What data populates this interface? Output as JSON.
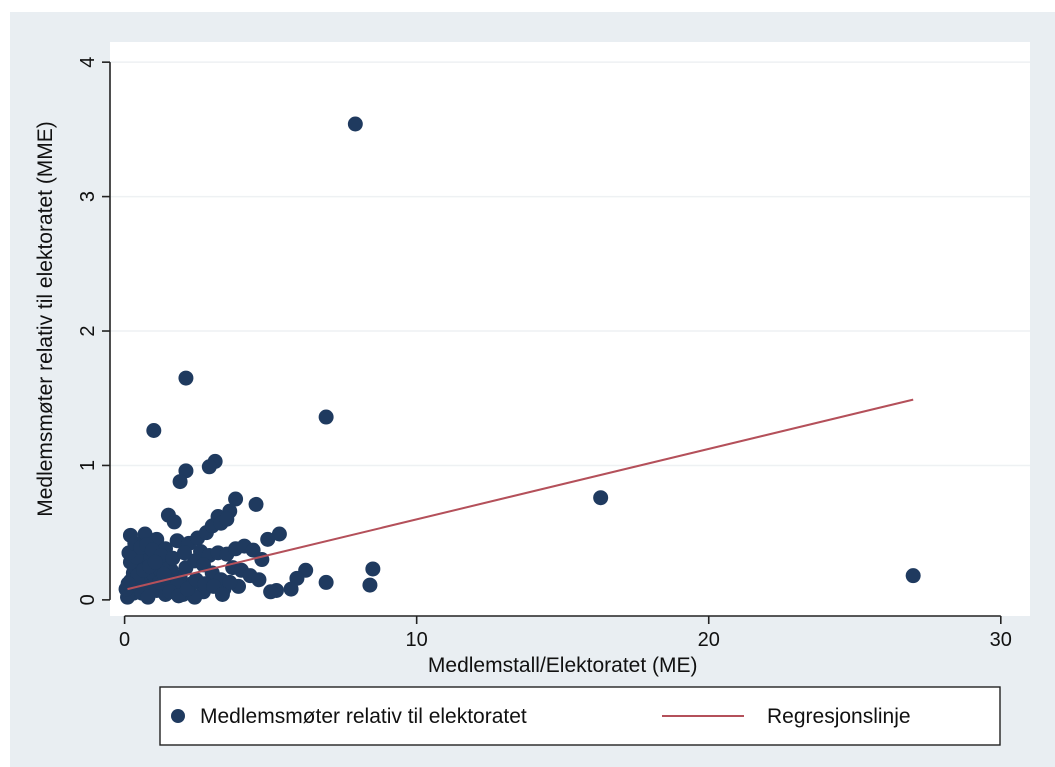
{
  "page": {
    "top_text": "",
    "background": "#e9eef2",
    "plot_background": "#ffffff",
    "text_color": "#2f75c4"
  },
  "chart_data": {
    "type": "scatter",
    "title": "",
    "xlabel": "Medlemstall/Elektoratet (ME)",
    "ylabel": "Medlemsmøter relativ til elektoratet (MME)",
    "xlim": [
      -0.5,
      31
    ],
    "ylim": [
      -0.12,
      4.15
    ],
    "xticks": [
      0,
      10,
      20,
      30
    ],
    "yticks": [
      0,
      1,
      2,
      3,
      4
    ],
    "grid": true,
    "legend_position": "bottom",
    "series": [
      {
        "name": "Medlemsmøter relativ til elektoratet",
        "kind": "scatter",
        "color": "#1f3a5f",
        "points": [
          [
            7.9,
            3.54
          ],
          [
            2.1,
            1.65
          ],
          [
            1.0,
            1.26
          ],
          [
            6.9,
            1.36
          ],
          [
            16.3,
            0.76
          ],
          [
            27.0,
            0.18
          ],
          [
            3.1,
            1.03
          ],
          [
            2.9,
            0.99
          ],
          [
            2.1,
            0.96
          ],
          [
            1.9,
            0.88
          ],
          [
            3.8,
            0.75
          ],
          [
            4.5,
            0.71
          ],
          [
            3.6,
            0.66
          ],
          [
            3.2,
            0.62
          ],
          [
            5.3,
            0.49
          ],
          [
            4.9,
            0.45
          ],
          [
            8.5,
            0.23
          ],
          [
            8.4,
            0.11
          ],
          [
            6.9,
            0.13
          ],
          [
            6.2,
            0.22
          ],
          [
            5.9,
            0.16
          ],
          [
            5.7,
            0.08
          ],
          [
            5.2,
            0.07
          ],
          [
            5.0,
            0.06
          ],
          [
            1.5,
            0.63
          ],
          [
            1.7,
            0.58
          ],
          [
            0.2,
            0.48
          ],
          [
            0.7,
            0.49
          ],
          [
            1.1,
            0.45
          ],
          [
            0.5,
            0.36
          ],
          [
            0.9,
            0.32
          ],
          [
            1.4,
            0.38
          ],
          [
            1.8,
            0.44
          ],
          [
            2.2,
            0.42
          ],
          [
            2.5,
            0.46
          ],
          [
            2.8,
            0.5
          ],
          [
            3.0,
            0.55
          ],
          [
            3.3,
            0.57
          ],
          [
            3.5,
            0.6
          ],
          [
            2.6,
            0.36
          ],
          [
            2.9,
            0.33
          ],
          [
            3.2,
            0.35
          ],
          [
            3.5,
            0.34
          ],
          [
            3.8,
            0.38
          ],
          [
            4.1,
            0.4
          ],
          [
            4.4,
            0.37
          ],
          [
            4.7,
            0.3
          ],
          [
            3.7,
            0.24
          ],
          [
            4.0,
            0.22
          ],
          [
            4.3,
            0.18
          ],
          [
            4.6,
            0.15
          ],
          [
            3.9,
            0.1
          ],
          [
            3.4,
            0.08
          ],
          [
            2.7,
            0.06
          ],
          [
            2.3,
            0.12
          ],
          [
            1.9,
            0.17
          ],
          [
            1.6,
            0.22
          ],
          [
            1.3,
            0.27
          ],
          [
            1.0,
            0.21
          ],
          [
            0.8,
            0.16
          ],
          [
            0.6,
            0.12
          ],
          [
            0.4,
            0.09
          ],
          [
            0.3,
            0.05
          ],
          [
            0.1,
            0.02
          ],
          [
            0.2,
            0.14
          ],
          [
            0.3,
            0.2
          ],
          [
            0.5,
            0.26
          ],
          [
            0.7,
            0.29
          ],
          [
            0.9,
            0.1
          ],
          [
            1.1,
            0.07
          ],
          [
            1.4,
            0.04
          ],
          [
            1.7,
            0.09
          ],
          [
            2.0,
            0.04
          ],
          [
            2.4,
            0.02
          ],
          [
            0.2,
            0.28
          ],
          [
            0.4,
            0.32
          ],
          [
            0.6,
            0.05
          ],
          [
            0.8,
            0.02
          ],
          [
            1.2,
            0.13
          ],
          [
            1.5,
            0.15
          ],
          [
            1.8,
            0.11
          ],
          [
            2.1,
            0.24
          ],
          [
            2.4,
            0.29
          ],
          [
            2.7,
            0.26
          ],
          [
            3.0,
            0.2
          ],
          [
            3.3,
            0.15
          ],
          [
            3.6,
            0.13
          ],
          [
            0.15,
            0.35
          ],
          [
            0.35,
            0.42
          ],
          [
            0.55,
            0.39
          ],
          [
            0.75,
            0.41
          ],
          [
            0.95,
            0.37
          ],
          [
            1.25,
            0.33
          ],
          [
            1.65,
            0.31
          ],
          [
            2.05,
            0.35
          ],
          [
            0.45,
            0.18
          ],
          [
            0.65,
            0.22
          ],
          [
            0.85,
            0.25
          ],
          [
            1.05,
            0.28
          ],
          [
            1.35,
            0.19
          ],
          [
            1.55,
            0.06
          ],
          [
            1.85,
            0.03
          ],
          [
            2.15,
            0.08
          ],
          [
            2.45,
            0.15
          ],
          [
            2.75,
            0.12
          ],
          [
            3.05,
            0.1
          ],
          [
            3.35,
            0.04
          ],
          [
            0.05,
            0.08
          ],
          [
            0.12,
            0.12
          ]
        ]
      },
      {
        "name": "Regresjonslinje",
        "kind": "line",
        "color": "#b4505a",
        "points": [
          [
            0.1,
            0.08
          ],
          [
            27.0,
            1.49
          ]
        ]
      }
    ]
  }
}
